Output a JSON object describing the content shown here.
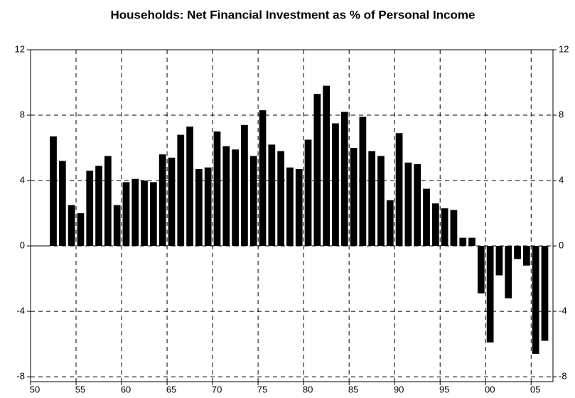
{
  "chart_data": {
    "type": "bar",
    "title": "Households: Net Financial Investment as % of Personal Income",
    "x": [
      1952,
      1953,
      1954,
      1955,
      1956,
      1957,
      1958,
      1959,
      1960,
      1961,
      1962,
      1963,
      1964,
      1965,
      1966,
      1967,
      1968,
      1969,
      1970,
      1971,
      1972,
      1973,
      1974,
      1975,
      1976,
      1977,
      1978,
      1979,
      1980,
      1981,
      1982,
      1983,
      1984,
      1985,
      1986,
      1987,
      1988,
      1989,
      1990,
      1991,
      1992,
      1993,
      1994,
      1995,
      1996,
      1997,
      1998,
      1999,
      2000,
      2001,
      2002,
      2003,
      2004,
      2005,
      2006
    ],
    "values": [
      6.7,
      5.2,
      2.5,
      2.0,
      4.6,
      4.9,
      5.5,
      2.5,
      3.9,
      4.1,
      4.0,
      3.9,
      5.6,
      5.4,
      6.8,
      7.3,
      4.7,
      4.8,
      7.0,
      6.1,
      5.9,
      7.4,
      5.5,
      8.3,
      6.2,
      5.8,
      4.8,
      4.7,
      6.5,
      9.3,
      9.8,
      7.5,
      8.2,
      6.0,
      7.9,
      5.8,
      5.5,
      2.8,
      6.9,
      5.1,
      5.0,
      3.5,
      2.6,
      2.3,
      2.2,
      0.5,
      0.5,
      -2.9,
      -5.9,
      -1.8,
      -3.2,
      -0.8,
      -1.2,
      -6.6,
      -5.8
    ],
    "color": "#000000",
    "xlim": [
      1950,
      2007.4
    ],
    "xticks": [
      {
        "value": 1950,
        "label": "50"
      },
      {
        "value": 1955,
        "label": "55"
      },
      {
        "value": 1960,
        "label": "60"
      },
      {
        "value": 1965,
        "label": "65"
      },
      {
        "value": 1970,
        "label": "70"
      },
      {
        "value": 1975,
        "label": "75"
      },
      {
        "value": 1980,
        "label": "80"
      },
      {
        "value": 1985,
        "label": "85"
      },
      {
        "value": 1990,
        "label": "90"
      },
      {
        "value": 1995,
        "label": "95"
      },
      {
        "value": 2000,
        "label": "00"
      },
      {
        "value": 2005,
        "label": "05"
      }
    ],
    "ylim": [
      -8.3,
      12
    ],
    "yticks": [
      12,
      8,
      4,
      0,
      -4,
      -8
    ],
    "grid": true
  }
}
